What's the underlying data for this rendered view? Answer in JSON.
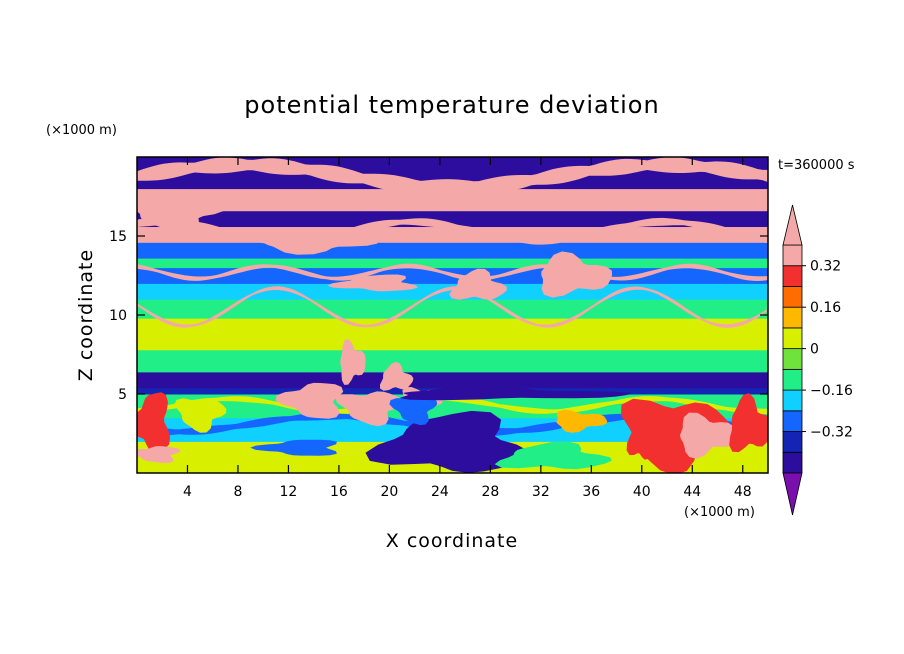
{
  "chart_data": {
    "type": "heatmap",
    "title": "potential temperature deviation",
    "xlabel": "X coordinate",
    "ylabel": "Z coordinate",
    "x_unit": "(×1000 m)",
    "y_unit": "(×1000 m)",
    "time_label": "t=360000 s",
    "xlim": [
      0,
      50
    ],
    "ylim": [
      0,
      20
    ],
    "x_ticks": [
      4,
      8,
      12,
      16,
      20,
      24,
      28,
      32,
      36,
      40,
      44,
      48
    ],
    "y_ticks": [
      5,
      10,
      15
    ],
    "colorbar": {
      "levels": [
        -0.48,
        -0.4,
        -0.32,
        -0.24,
        -0.16,
        -0.08,
        0,
        0.08,
        0.16,
        0.24,
        0.32,
        0.4
      ],
      "colors": [
        "#7a0fae",
        "#2c0d9e",
        "#1424b4",
        "#1466ff",
        "#10d0ff",
        "#22ee88",
        "#6fe23b",
        "#d8f000",
        "#ffb800",
        "#ff6d00",
        "#f23030",
        "#f4a8a8",
        "#f4a8a8"
      ],
      "labels": [
        {
          "value": -0.32,
          "text": "−0.32"
        },
        {
          "value": -0.16,
          "text": "−0.16"
        },
        {
          "value": 0,
          "text": "0"
        },
        {
          "value": 0.16,
          "text": "0.16"
        },
        {
          "value": 0.32,
          "text": "0.32"
        }
      ],
      "extend": "both"
    },
    "bands": [
      {
        "z0": 0,
        "z1": 2,
        "value": 0.0
      },
      {
        "z0": 2,
        "z1": 3.5,
        "value": -0.2
      },
      {
        "z0": 3.5,
        "z1": 5,
        "value": -0.15
      },
      {
        "z0": 5,
        "z1": 5.4,
        "value": -0.36
      },
      {
        "z0": 5.4,
        "z1": 6.4,
        "value": -0.46
      },
      {
        "z0": 6.4,
        "z1": 7.8,
        "value": -0.12
      },
      {
        "z0": 7.8,
        "z1": 9.8,
        "value": 0.0
      },
      {
        "z0": 9.8,
        "z1": 11,
        "value": -0.1
      },
      {
        "z0": 11,
        "z1": 12,
        "value": -0.17
      },
      {
        "z0": 12,
        "z1": 13,
        "value": -0.26
      },
      {
        "z0": 13,
        "z1": 13.6,
        "value": -0.12
      },
      {
        "z0": 13.6,
        "z1": 14.6,
        "value": -0.26
      },
      {
        "z0": 14.6,
        "z1": 15.6,
        "value": 0.44
      },
      {
        "z0": 15.6,
        "z1": 16.6,
        "value": -0.46
      },
      {
        "z0": 16.6,
        "z1": 18,
        "value": 0.44
      },
      {
        "z0": 18,
        "z1": 20,
        "value": -0.46
      }
    ],
    "blobs": [
      {
        "x": 3,
        "z": 16.6,
        "rx": 3.5,
        "rz": 1.1,
        "value": 0.44
      },
      {
        "x": 14,
        "z": 14.7,
        "rx": 4.5,
        "rz": 0.7,
        "value": 0.44
      },
      {
        "x": 34.5,
        "z": 12.5,
        "rx": 2.8,
        "rz": 1.2,
        "value": 0.44
      },
      {
        "x": 27,
        "z": 11.8,
        "rx": 2,
        "rz": 0.9,
        "value": 0.44
      },
      {
        "x": 19,
        "z": 12,
        "rx": 3,
        "rz": 0.5,
        "value": 0.44
      },
      {
        "x": 14,
        "z": 4.6,
        "rx": 2.3,
        "rz": 1.1,
        "value": 0.44
      },
      {
        "x": 18.5,
        "z": 4.2,
        "rx": 2.3,
        "rz": 1.0,
        "value": 0.44
      },
      {
        "x": 22.5,
        "z": 4.6,
        "rx": 1.5,
        "rz": 0.8,
        "value": 0.44
      },
      {
        "x": 17,
        "z": 7,
        "rx": 1,
        "rz": 1.2,
        "value": 0.44
      },
      {
        "x": 20.5,
        "z": 6,
        "rx": 1.2,
        "rz": 0.8,
        "value": 0.44
      },
      {
        "x": 25,
        "z": 1.8,
        "rx": 5.5,
        "rz": 1.8,
        "value": -0.46
      },
      {
        "x": 13,
        "z": 1.6,
        "rx": 3,
        "rz": 0.5,
        "value": -0.32
      },
      {
        "x": 22,
        "z": 4.1,
        "rx": 1.6,
        "rz": 0.9,
        "value": -0.32
      },
      {
        "x": 42.5,
        "z": 2.6,
        "rx": 4,
        "rz": 2.1,
        "value": 0.24
      },
      {
        "x": 45,
        "z": 2.4,
        "rx": 2.2,
        "rz": 1.2,
        "value": 0.32
      },
      {
        "x": 48.5,
        "z": 3,
        "rx": 1.6,
        "rz": 1.6,
        "value": 0.24
      },
      {
        "x": 40,
        "z": 2.3,
        "rx": 1,
        "rz": 1.5,
        "value": 0.24
      },
      {
        "x": 1.2,
        "z": 3.2,
        "rx": 1.4,
        "rz": 1.8,
        "value": 0.28
      },
      {
        "x": 1.5,
        "z": 1.2,
        "rx": 1.8,
        "rz": 0.5,
        "value": 0.44
      },
      {
        "x": 5,
        "z": 3.8,
        "rx": 1.8,
        "rz": 1,
        "value": 0.0
      },
      {
        "x": 35,
        "z": 3.3,
        "rx": 2,
        "rz": 0.6,
        "value": 0.1
      },
      {
        "x": 29,
        "z": 5,
        "rx": 9,
        "rz": 0.35,
        "value": -0.46
      },
      {
        "x": 33,
        "z": 1,
        "rx": 4,
        "rz": 0.8,
        "value": -0.1
      }
    ],
    "streams": [
      {
        "y0": 18.8,
        "amp": 0.7,
        "waves": 3,
        "thick": 0.5,
        "value": 0.44
      },
      {
        "y0": 15.3,
        "amp": 0.6,
        "waves": 5,
        "thick": 0.25,
        "value": 0.44
      },
      {
        "y0": 12.7,
        "amp": 0.4,
        "waves": 9,
        "thick": 0.15,
        "value": 0.44
      },
      {
        "y0": 10.5,
        "amp": 1.2,
        "waves": 7,
        "thick": 0.12,
        "value": 0.44
      },
      {
        "y0": 3.1,
        "amp": 0.5,
        "waves": 4,
        "thick": 0.25,
        "value": -0.32
      },
      {
        "y0": 4.3,
        "amp": 0.4,
        "waves": 6,
        "thick": 0.18,
        "value": 0.05
      }
    ]
  }
}
